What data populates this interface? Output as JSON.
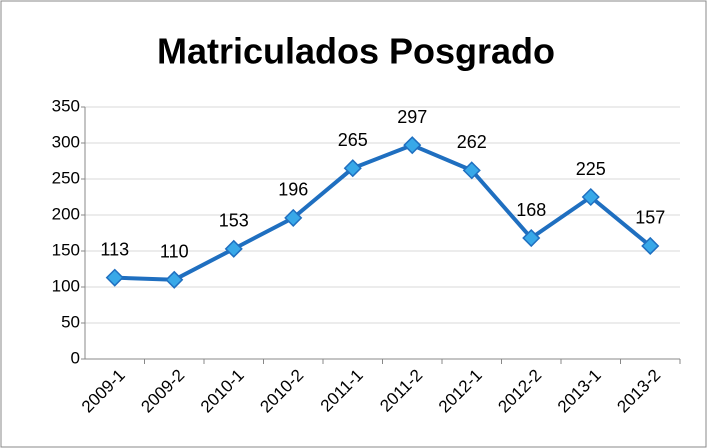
{
  "chart_data": {
    "type": "line",
    "title": "Matriculados Posgrado",
    "categories": [
      "2009-1",
      "2009-2",
      "2010-1",
      "2010-2",
      "2011-1",
      "2011-2",
      "2012-1",
      "2012-2",
      "2013-1",
      "2013-2"
    ],
    "values": [
      113,
      110,
      153,
      196,
      265,
      297,
      262,
      168,
      225,
      157
    ],
    "color": "#1f6fc0",
    "marker_color": "#38a8e8",
    "ylim": [
      0,
      350
    ],
    "yticks": [
      0,
      50,
      100,
      150,
      200,
      250,
      300,
      350
    ],
    "grid": true
  }
}
